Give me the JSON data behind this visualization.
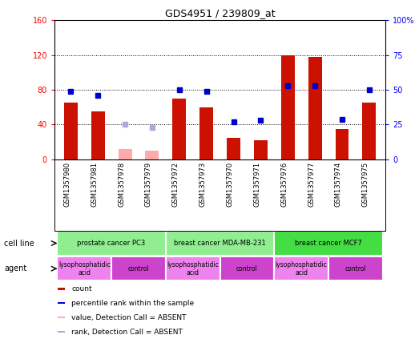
{
  "title": "GDS4951 / 239809_at",
  "samples": [
    "GSM1357980",
    "GSM1357981",
    "GSM1357978",
    "GSM1357979",
    "GSM1357972",
    "GSM1357973",
    "GSM1357970",
    "GSM1357971",
    "GSM1357976",
    "GSM1357977",
    "GSM1357974",
    "GSM1357975"
  ],
  "red_bars": [
    65,
    55,
    0,
    0,
    70,
    60,
    25,
    22,
    120,
    118,
    35,
    65
  ],
  "pink_bars": [
    0,
    0,
    12,
    10,
    0,
    0,
    0,
    0,
    0,
    0,
    0,
    0
  ],
  "blue_markers_pct": [
    49,
    46,
    0,
    0,
    50,
    49,
    27,
    28,
    53,
    53,
    29,
    50
  ],
  "light_blue_markers_pct": [
    0,
    0,
    25,
    23,
    0,
    0,
    0,
    0,
    0,
    0,
    0,
    0
  ],
  "ylim_left": [
    0,
    160
  ],
  "ylim_right": [
    0,
    100
  ],
  "yticks_left": [
    0,
    40,
    80,
    120,
    160
  ],
  "yticks_right": [
    0,
    25,
    50,
    75,
    100
  ],
  "ytick_labels_left": [
    "0",
    "40",
    "80",
    "120",
    "160"
  ],
  "ytick_labels_right": [
    "0",
    "25",
    "50",
    "75",
    "100%"
  ],
  "cell_lines": [
    {
      "label": "prostate cancer PC3",
      "start": 0,
      "end": 4,
      "color": "#90EE90"
    },
    {
      "label": "breast cancer MDA-MB-231",
      "start": 4,
      "end": 8,
      "color": "#90EE90"
    },
    {
      "label": "breast cancer MCF7",
      "start": 8,
      "end": 12,
      "color": "#44DD44"
    }
  ],
  "agents": [
    {
      "label": "lysophosphatidic\nacid",
      "start": 0,
      "end": 2,
      "color": "#EE82EE"
    },
    {
      "label": "control",
      "start": 2,
      "end": 4,
      "color": "#CC44CC"
    },
    {
      "label": "lysophosphatidic\nacid",
      "start": 4,
      "end": 6,
      "color": "#EE82EE"
    },
    {
      "label": "control",
      "start": 6,
      "end": 8,
      "color": "#CC44CC"
    },
    {
      "label": "lysophosphatidic\nacid",
      "start": 8,
      "end": 10,
      "color": "#EE82EE"
    },
    {
      "label": "control",
      "start": 10,
      "end": 12,
      "color": "#CC44CC"
    }
  ],
  "legend_items": [
    {
      "color": "#CC1100",
      "label": "count"
    },
    {
      "color": "#0000CC",
      "label": "percentile rank within the sample"
    },
    {
      "color": "#FFAAAA",
      "label": "value, Detection Call = ABSENT"
    },
    {
      "color": "#AAAADD",
      "label": "rank, Detection Call = ABSENT"
    }
  ],
  "bar_color": "#CC1100",
  "pink_color": "#FFAAAA",
  "blue_color": "#0000CC",
  "light_blue_color": "#AAAADD",
  "tick_area_color": "#C8C8C8",
  "gridline_ticks": [
    40,
    80,
    120
  ]
}
